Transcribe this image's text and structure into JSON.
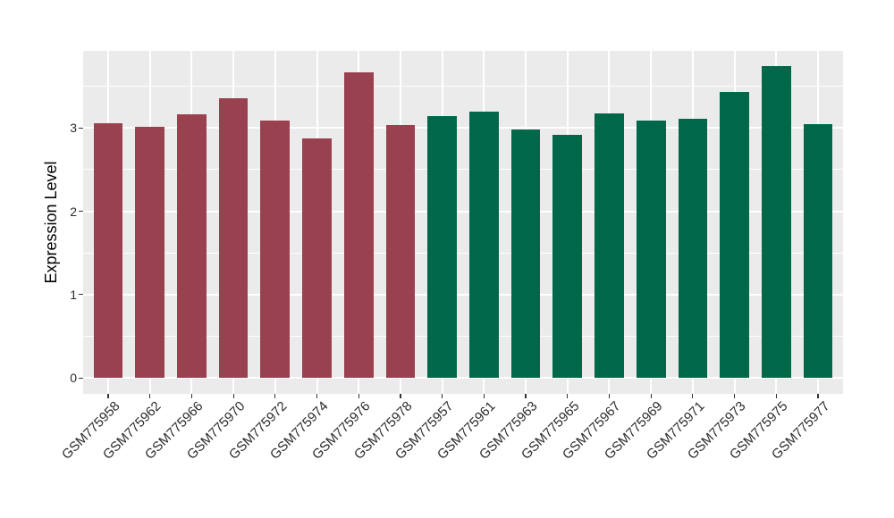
{
  "chart_data": {
    "type": "bar",
    "title": "",
    "ylabel": "Expression Level",
    "xlabel": "",
    "categories": [
      "GSM775958",
      "GSM775962",
      "GSM775966",
      "GSM775970",
      "GSM775972",
      "GSM775974",
      "GSM775976",
      "GSM775978",
      "GSM775957",
      "GSM775961",
      "GSM775963",
      "GSM775965",
      "GSM775967",
      "GSM775969",
      "GSM775971",
      "GSM775973",
      "GSM775975",
      "GSM775977"
    ],
    "values": [
      3.05,
      3.01,
      3.16,
      3.35,
      3.09,
      2.87,
      3.66,
      3.03,
      3.14,
      3.19,
      2.98,
      2.92,
      3.17,
      3.09,
      3.11,
      3.43,
      3.74,
      3.04
    ],
    "bar_groups": [
      "red",
      "red",
      "red",
      "red",
      "red",
      "red",
      "red",
      "red",
      "green",
      "green",
      "green",
      "green",
      "green",
      "green",
      "green",
      "green",
      "green",
      "green"
    ],
    "group_colors": {
      "red": "#9A4150",
      "green": "#006849"
    },
    "y_ticks": [
      0,
      1,
      2,
      3
    ],
    "y_tick_labels": [
      "0",
      "1",
      "2",
      "3"
    ],
    "y_minor_ticks": [
      0.5,
      1.5,
      2.5,
      3.5
    ],
    "ylim": [
      0,
      3.93
    ],
    "grid": "on",
    "legend": "none",
    "panel_bg": "#EBEBEB",
    "grid_color": "#FFFFFF",
    "axis_text_color": "#2b2b2b"
  }
}
